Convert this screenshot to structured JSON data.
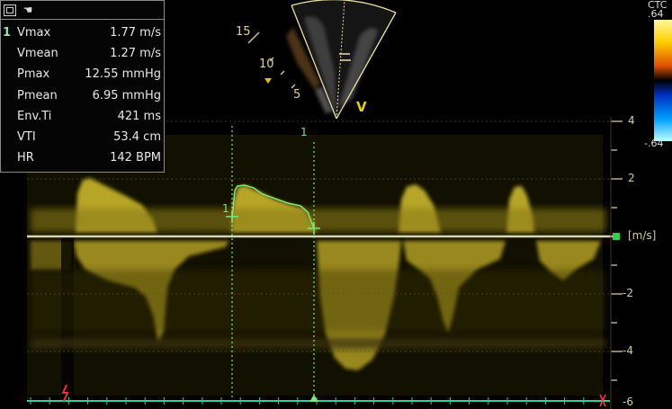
{
  "measurements": {
    "index": "1",
    "rows": [
      {
        "label": "Vmax",
        "value": "1.77 m/s"
      },
      {
        "label": "Vmean",
        "value": "1.27 m/s"
      },
      {
        "label": "Pmax",
        "value": "12.55 mmHg"
      },
      {
        "label": "Pmean",
        "value": "6.95 mmHg"
      },
      {
        "label": "Env.Ti",
        "value": "421 ms"
      },
      {
        "label": "VTI",
        "value": "53.4 cm"
      },
      {
        "label": "HR",
        "value": "142 BPM"
      }
    ]
  },
  "sector": {
    "depth_labels": [
      "15",
      "10",
      "5"
    ],
    "orientation_marker": "V"
  },
  "color_scale": {
    "top_label": "CTC",
    "max": ".64",
    "min": "-.64"
  },
  "velocity_scale": {
    "ticks": [
      "4",
      "2",
      "-2",
      "-4",
      "-6"
    ],
    "units": "[m/s]"
  },
  "caliper": {
    "cursor_label": "1",
    "point_label": "1"
  },
  "colors": {
    "doppler": "#c8b830",
    "trace": "#7be87b",
    "ecg": "#2fd0a0",
    "panel_border": "#8a8a8a"
  }
}
